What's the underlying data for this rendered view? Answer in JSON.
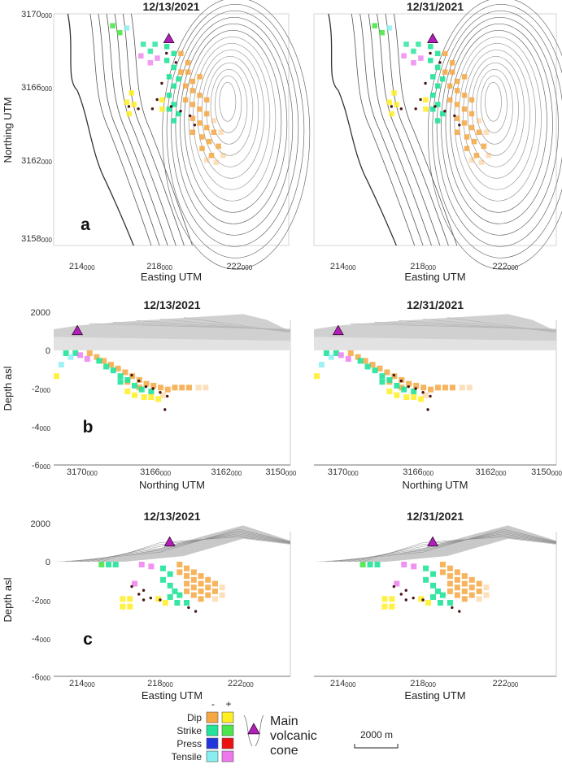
{
  "figure": {
    "dates": [
      "12/13/2021",
      "12/31/2021"
    ],
    "colors": {
      "dip_neg": "#f5a742",
      "dip_pos": "#ffee22",
      "strike_neg": "#22e39a",
      "strike_pos": "#4ce64c",
      "press_neg": "#2235dd",
      "press_pos": "#ee1111",
      "tensile_neg": "#88eef0",
      "tensile_pos": "#ee77ee",
      "cone": "#b020b8",
      "dot": "#4a1515",
      "contour": "#555555"
    }
  },
  "panels": [
    {
      "letter": "a",
      "ylabel": "Northing UTM",
      "xlabel": "Easting UTM",
      "yticks": [
        "3170000",
        "3166000",
        "3162000",
        "3158000"
      ],
      "xticks": [
        "214000",
        "218000",
        "222000"
      ]
    },
    {
      "letter": "b",
      "ylabel": "Depth asl",
      "xlabel": "Northing UTM",
      "yticks": [
        "2000",
        "0",
        "-2000",
        "-4000",
        "-6000"
      ],
      "xticks": [
        "3170000",
        "3166000",
        "3162000",
        "3150000"
      ]
    },
    {
      "letter": "c",
      "ylabel": "Depth asl",
      "xlabel": "Easting UTM",
      "yticks": [
        "2000",
        "0",
        "-2000",
        "-4000",
        "-6000"
      ],
      "xticks": [
        "214000",
        "218000",
        "222000"
      ]
    }
  ],
  "legend": {
    "minus": "-",
    "plus": "+",
    "rows": [
      "Dip",
      "Strike",
      "Press",
      "Tensile"
    ],
    "cone_label_1": "Main",
    "cone_label_2": "volcanic",
    "cone_label_3": "cone",
    "scale_label": "2000  m"
  },
  "chart_data": [
    {
      "type": "heatmap",
      "panel": "a",
      "title": "12/13/2021",
      "xlabel": "Easting UTM",
      "ylabel": "Northing UTM",
      "xlim": [
        212800,
        225000
      ],
      "ylim": [
        3156800,
        3170000
      ],
      "xticks": [
        214000,
        218000,
        222000
      ],
      "yticks": [
        3170000,
        3166000,
        3162000,
        3158000
      ],
      "cone": {
        "x": 219000,
        "y": 3168500
      },
      "source_dots": [
        [
          218800,
          3167700
        ],
        [
          218200,
          3166200
        ],
        [
          217400,
          3165100
        ],
        [
          218000,
          3165300
        ],
        [
          218700,
          3165200
        ],
        [
          219300,
          3164900
        ],
        [
          219600,
          3164400
        ]
      ],
      "cells": [
        {
          "x": 219500,
          "y": 3166500,
          "type": "dip_neg"
        },
        {
          "x": 219800,
          "y": 3165500,
          "type": "dip_neg"
        },
        {
          "x": 220000,
          "y": 3164500,
          "type": "dip_neg"
        },
        {
          "x": 220500,
          "y": 3163500,
          "type": "dip_neg"
        },
        {
          "x": 219000,
          "y": 3166500,
          "type": "strike_neg"
        },
        {
          "x": 218800,
          "y": 3167500,
          "type": "strike_neg"
        },
        {
          "x": 217200,
          "y": 3166000,
          "type": "dip_pos"
        },
        {
          "x": 216000,
          "y": 3169000,
          "type": "strike_pos"
        },
        {
          "x": 218200,
          "y": 3168000,
          "type": "tensile_pos"
        }
      ]
    },
    {
      "type": "heatmap",
      "panel": "a",
      "title": "12/31/2021",
      "xlabel": "Easting UTM",
      "ylabel": "Northing UTM",
      "xlim": [
        212800,
        225000
      ],
      "ylim": [
        3156800,
        3170000
      ],
      "xticks": [
        214000,
        218000,
        222000
      ],
      "yticks": [
        3170000,
        3166000,
        3162000,
        3158000
      ],
      "cone": {
        "x": 219000,
        "y": 3168500
      },
      "source_dots": [
        [
          218800,
          3167700
        ],
        [
          218200,
          3166200
        ],
        [
          217400,
          3165100
        ],
        [
          218000,
          3165300
        ],
        [
          218700,
          3165200
        ],
        [
          219300,
          3164900
        ],
        [
          219600,
          3164400
        ]
      ],
      "cells": [
        {
          "x": 219500,
          "y": 3166500,
          "type": "dip_neg"
        },
        {
          "x": 219800,
          "y": 3165500,
          "type": "dip_neg"
        },
        {
          "x": 220000,
          "y": 3164500,
          "type": "dip_neg"
        },
        {
          "x": 220500,
          "y": 3163500,
          "type": "dip_neg"
        },
        {
          "x": 219000,
          "y": 3166500,
          "type": "strike_neg"
        },
        {
          "x": 218800,
          "y": 3167500,
          "type": "strike_neg"
        },
        {
          "x": 217200,
          "y": 3166000,
          "type": "dip_pos"
        },
        {
          "x": 216000,
          "y": 3169000,
          "type": "strike_pos"
        },
        {
          "x": 218200,
          "y": 3168000,
          "type": "tensile_pos"
        }
      ]
    },
    {
      "type": "heatmap",
      "panel": "b",
      "title": "12/13/2021",
      "xlabel": "Northing UTM",
      "ylabel": "Depth asl",
      "ylim": [
        -6000,
        2000
      ],
      "yticks": [
        2000,
        0,
        -2000,
        -4000,
        -6000
      ],
      "xtick_labels": [
        "3170000",
        "3166000",
        "3162000",
        "3150000"
      ],
      "cone": {
        "x": 3168500,
        "y": 1000
      }
    },
    {
      "type": "heatmap",
      "panel": "b",
      "title": "12/31/2021",
      "xlabel": "Northing UTM",
      "ylabel": "Depth asl",
      "ylim": [
        -6000,
        2000
      ],
      "yticks": [
        2000,
        0,
        -2000,
        -4000,
        -6000
      ],
      "xtick_labels": [
        "3170000",
        "3166000",
        "3162000",
        "3150000"
      ],
      "cone": {
        "x": 3168500,
        "y": 1000
      }
    },
    {
      "type": "heatmap",
      "panel": "c",
      "title": "12/13/2021",
      "xlabel": "Easting UTM",
      "ylabel": "Depth asl",
      "xlim": [
        212800,
        225000
      ],
      "ylim": [
        -6000,
        2000
      ],
      "xticks": [
        214000,
        218000,
        222000
      ],
      "yticks": [
        2000,
        0,
        -2000,
        -4000,
        -6000
      ],
      "cone": {
        "x": 219000,
        "y": 1000
      }
    },
    {
      "type": "heatmap",
      "panel": "c",
      "title": "12/31/2021",
      "xlabel": "Easting UTM",
      "ylabel": "Depth asl",
      "xlim": [
        212800,
        225000
      ],
      "ylim": [
        -6000,
        2000
      ],
      "xticks": [
        214000,
        218000,
        222000
      ],
      "yticks": [
        2000,
        0,
        -2000,
        -4000,
        -6000
      ],
      "cone": {
        "x": 219000,
        "y": 1000
      }
    }
  ]
}
